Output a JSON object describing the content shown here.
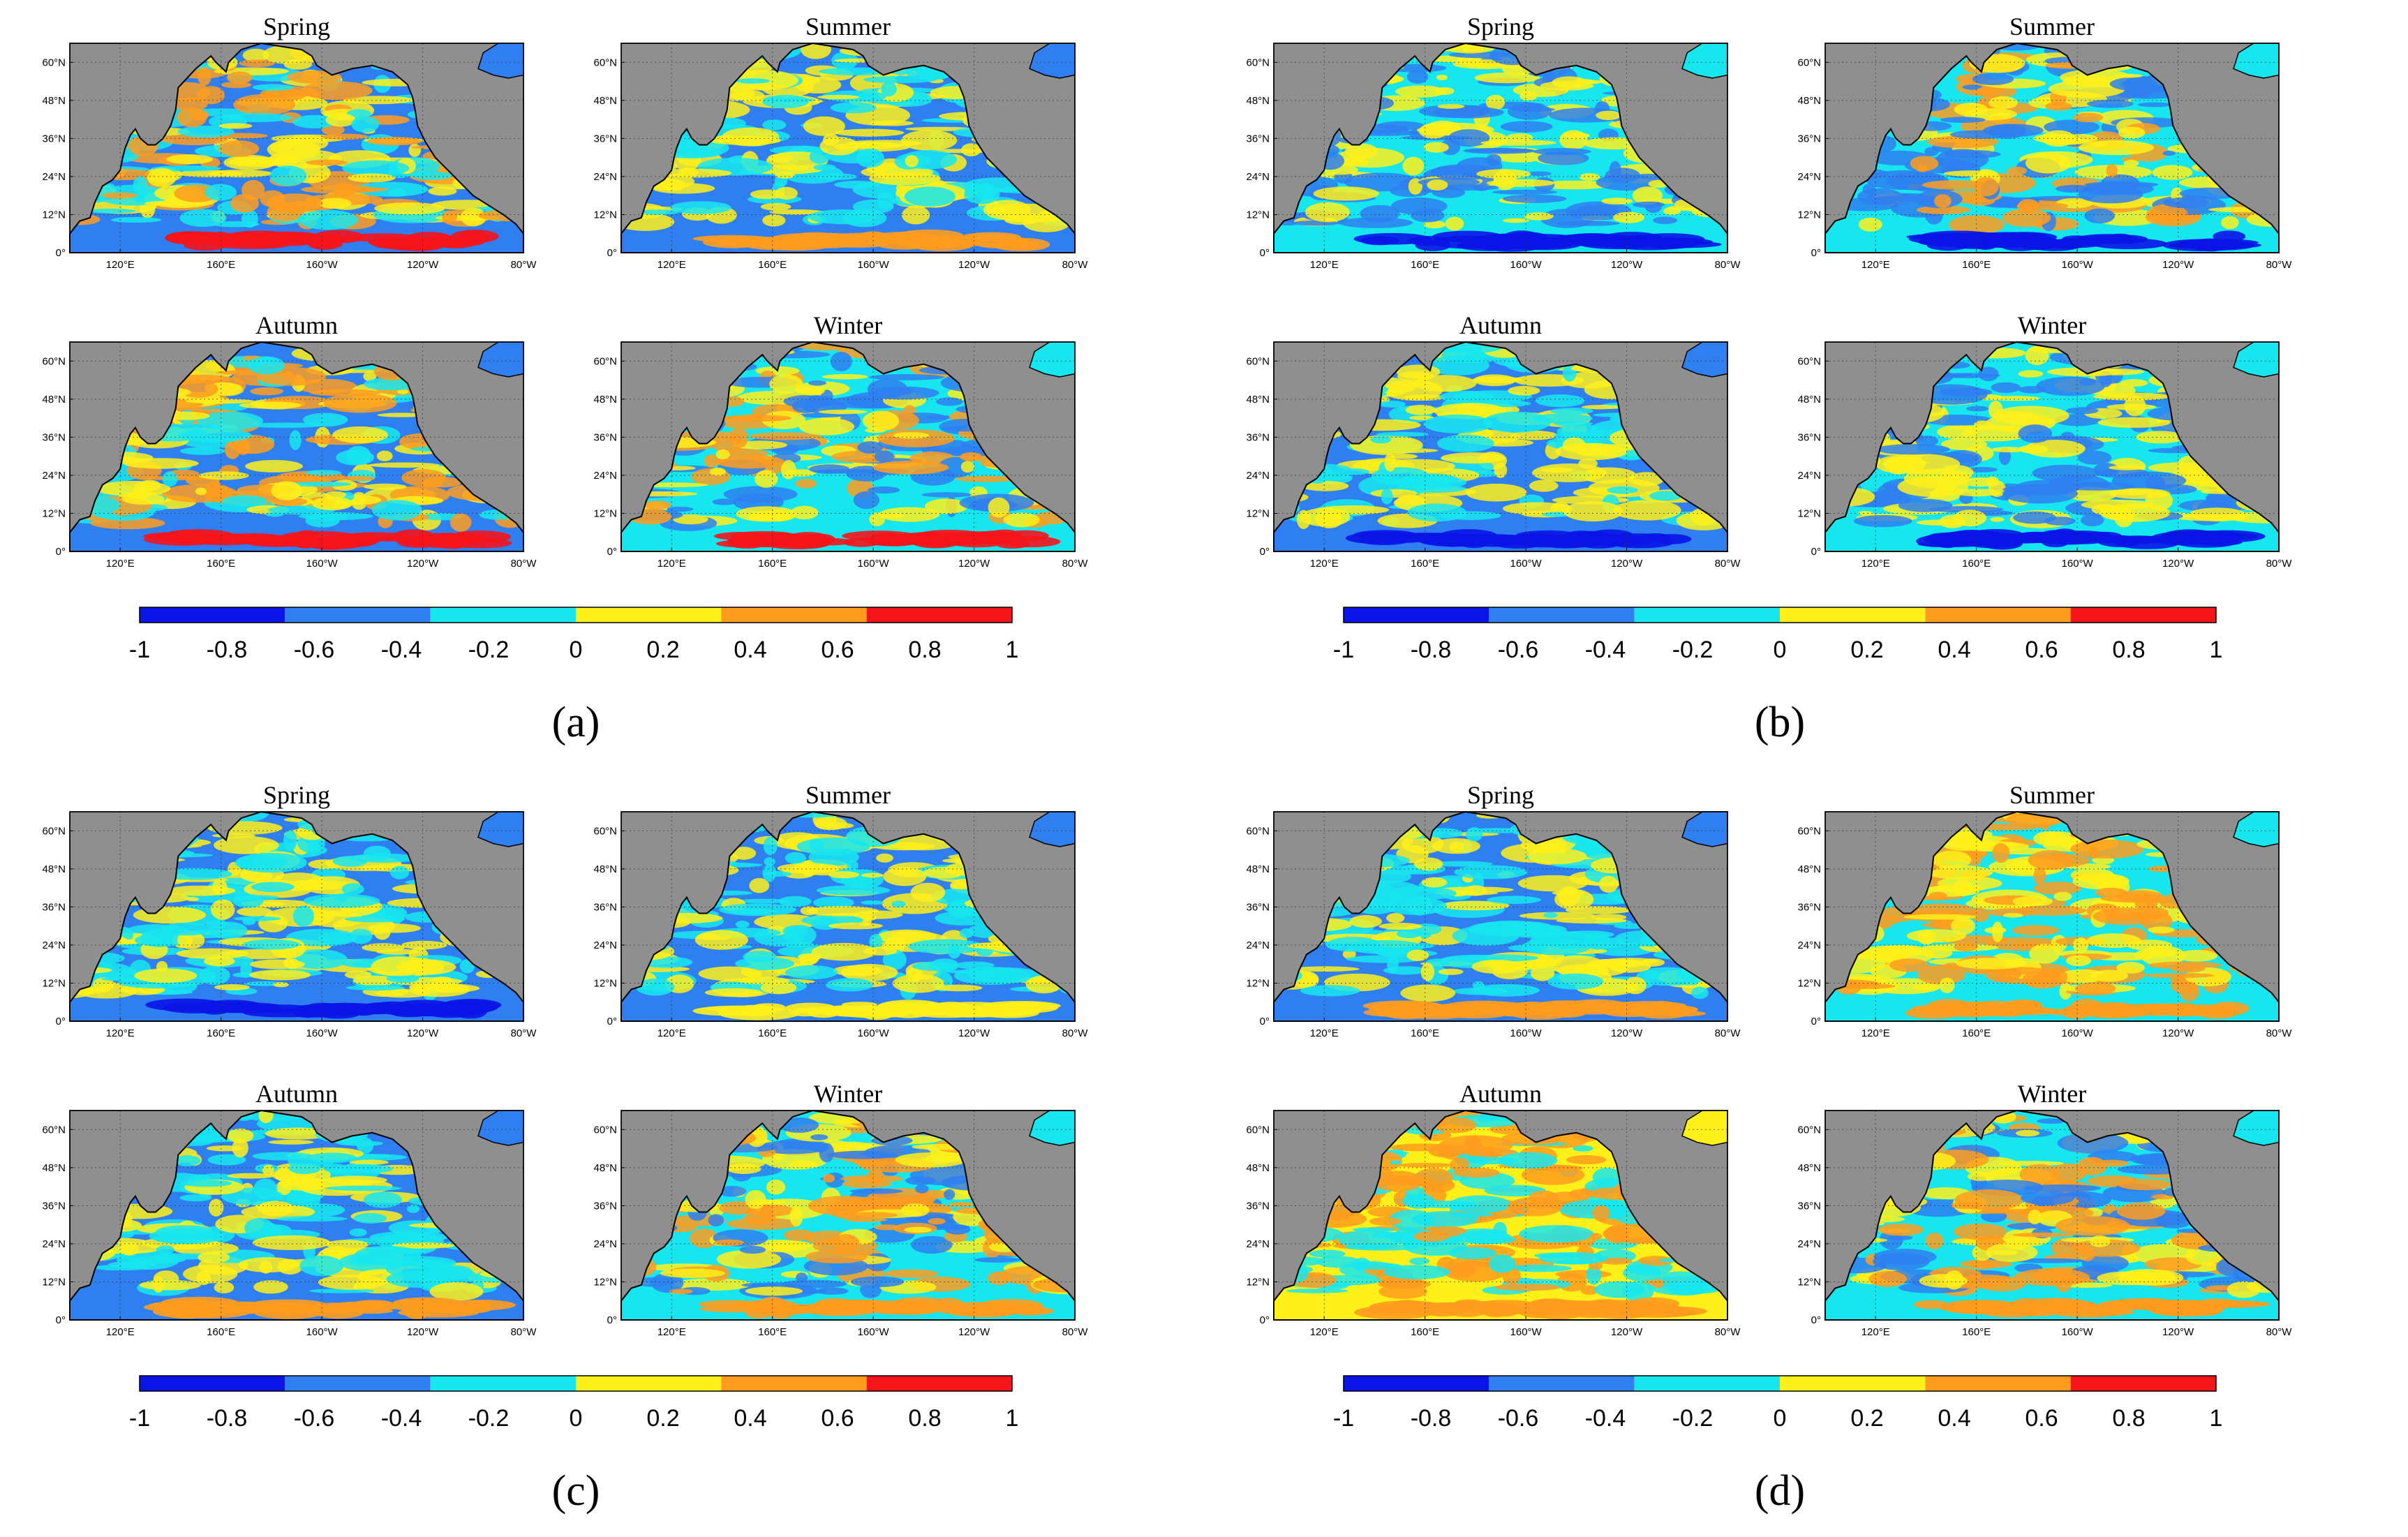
{
  "colors": {
    "land": "#8f8f8f",
    "palette": [
      "#0a14e6",
      "#2f7ff0",
      "#18e6ee",
      "#fff01a",
      "#ff9c1e",
      "#f5141a"
    ]
  },
  "seasons": [
    "Spring",
    "Summer",
    "Autumn",
    "Winter"
  ],
  "lat_ticks": [
    "0°",
    "12°N",
    "24°N",
    "36°N",
    "48°N",
    "60°N"
  ],
  "lon_ticks": [
    "120°E",
    "160°E",
    "160°W",
    "120°W",
    "80°W"
  ],
  "colorbar": {
    "ticks": [
      "-1",
      "-0.8",
      "-0.6",
      "-0.4",
      "-0.2",
      "0",
      "0.2",
      "0.4",
      "0.6",
      "0.8",
      "1"
    ],
    "range": [
      -1,
      1
    ],
    "bins": 6
  },
  "panels": [
    {
      "label": "(a)",
      "maps": [
        {
          "season": "Spring",
          "dominant": "#2f7ff0",
          "mix": [
            "#18e6ee",
            "#fff01a",
            "#ff9c1e"
          ],
          "highlight": "#f5141a",
          "band_lat": 4
        },
        {
          "season": "Summer",
          "dominant": "#2f7ff0",
          "mix": [
            "#18e6ee",
            "#fff01a"
          ],
          "highlight": "#ff9c1e",
          "band_lat": 4
        },
        {
          "season": "Autumn",
          "dominant": "#2f7ff0",
          "mix": [
            "#18e6ee",
            "#fff01a",
            "#ff9c1e"
          ],
          "highlight": "#f5141a",
          "band_lat": 4
        },
        {
          "season": "Winter",
          "dominant": "#18e6ee",
          "mix": [
            "#fff01a",
            "#ff9c1e",
            "#2f7ff0"
          ],
          "highlight": "#f5141a",
          "band_lat": 4
        }
      ]
    },
    {
      "label": "(b)",
      "maps": [
        {
          "season": "Spring",
          "dominant": "#18e6ee",
          "mix": [
            "#fff01a",
            "#2f7ff0"
          ],
          "highlight": "#0a14e6",
          "band_lat": 4
        },
        {
          "season": "Summer",
          "dominant": "#18e6ee",
          "mix": [
            "#fff01a",
            "#2f7ff0",
            "#ff9c1e"
          ],
          "highlight": "#0a14e6",
          "band_lat": 4
        },
        {
          "season": "Autumn",
          "dominant": "#2f7ff0",
          "mix": [
            "#18e6ee",
            "#fff01a"
          ],
          "highlight": "#0a14e6",
          "band_lat": 4
        },
        {
          "season": "Winter",
          "dominant": "#18e6ee",
          "mix": [
            "#2f7ff0",
            "#fff01a"
          ],
          "highlight": "#0a14e6",
          "band_lat": 4
        }
      ]
    },
    {
      "label": "(c)",
      "maps": [
        {
          "season": "Spring",
          "dominant": "#2f7ff0",
          "mix": [
            "#18e6ee",
            "#fff01a"
          ],
          "highlight": "#0a14e6",
          "band_lat": 4
        },
        {
          "season": "Summer",
          "dominant": "#2f7ff0",
          "mix": [
            "#18e6ee",
            "#fff01a"
          ],
          "highlight": "#fff01a",
          "band_lat": 4
        },
        {
          "season": "Autumn",
          "dominant": "#2f7ff0",
          "mix": [
            "#18e6ee",
            "#fff01a"
          ],
          "highlight": "#ff9c1e",
          "band_lat": 4
        },
        {
          "season": "Winter",
          "dominant": "#18e6ee",
          "mix": [
            "#fff01a",
            "#ff9c1e",
            "#2f7ff0"
          ],
          "highlight": "#ff9c1e",
          "band_lat": 4
        }
      ]
    },
    {
      "label": "(d)",
      "maps": [
        {
          "season": "Spring",
          "dominant": "#2f7ff0",
          "mix": [
            "#18e6ee",
            "#fff01a"
          ],
          "highlight": "#ff9c1e",
          "band_lat": 4
        },
        {
          "season": "Summer",
          "dominant": "#18e6ee",
          "mix": [
            "#fff01a",
            "#ff9c1e"
          ],
          "highlight": "#ff9c1e",
          "band_lat": 4
        },
        {
          "season": "Autumn",
          "dominant": "#fff01a",
          "mix": [
            "#18e6ee",
            "#ff9c1e"
          ],
          "highlight": "#ff9c1e",
          "band_lat": 4
        },
        {
          "season": "Winter",
          "dominant": "#18e6ee",
          "mix": [
            "#fff01a",
            "#ff9c1e",
            "#2f7ff0"
          ],
          "highlight": "#ff9c1e",
          "band_lat": 4
        }
      ]
    }
  ]
}
